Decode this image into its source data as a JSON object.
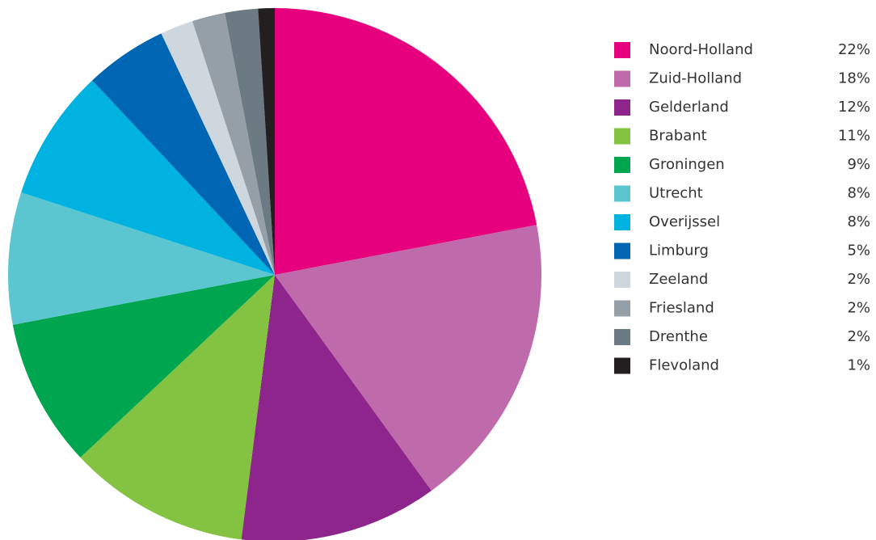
{
  "chart_data": {
    "type": "pie",
    "categories": [
      "Noord-Holland",
      "Zuid-Holland",
      "Gelderland",
      "Brabant",
      "Groningen",
      "Utrecht",
      "Overijssel",
      "Limburg",
      "Zeeland",
      "Friesland",
      "Drenthe",
      "Flevoland"
    ],
    "values": [
      22,
      18,
      12,
      11,
      9,
      8,
      8,
      5,
      2,
      2,
      2,
      1
    ],
    "value_labels": [
      "22%",
      "18%",
      "12%",
      "11%",
      "9%",
      "8%",
      "8%",
      "5%",
      "2%",
      "2%",
      "2%",
      "1%"
    ],
    "colors": [
      "#e6007e",
      "#bf6aab",
      "#8e258d",
      "#84c341",
      "#00a54f",
      "#5bc5d0",
      "#00b2e0",
      "#0066b3",
      "#cfd7de",
      "#959fa7",
      "#6c7a83",
      "#231f20"
    ],
    "legend": "right"
  }
}
